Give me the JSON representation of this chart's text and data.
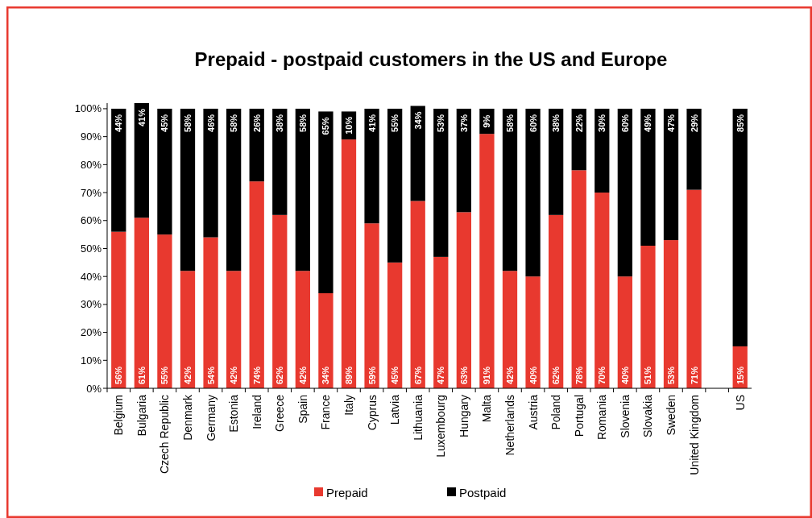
{
  "chart_data": {
    "type": "bar",
    "title": "Prepaid - postpaid customers in the US and Europe",
    "stacked": true,
    "legend": "bottom",
    "grid": false,
    "ylim": [
      0,
      102
    ],
    "yticks": [
      {
        "value": 0,
        "label": "0%"
      },
      {
        "value": 10,
        "label": "10%"
      },
      {
        "value": 20,
        "label": "20%"
      },
      {
        "value": 30,
        "label": "30%"
      },
      {
        "value": 40,
        "label": "40%"
      },
      {
        "value": 50,
        "label": "50%"
      },
      {
        "value": 60,
        "label": "60%"
      },
      {
        "value": 70,
        "label": "70%"
      },
      {
        "value": 80,
        "label": "80%"
      },
      {
        "value": 90,
        "label": "90%"
      },
      {
        "value": 100,
        "label": "100%"
      }
    ],
    "categories": [
      "Belgium",
      "Bulgaria",
      "Czech Republic",
      "Denmark",
      "Germany",
      "Estonia",
      "Ireland",
      "Greece",
      "Spain",
      "France",
      "Italy",
      "Cyprus",
      "Latvia",
      "Lithuania",
      "Luxembourg",
      "Hungary",
      "Malta",
      "Netherlands",
      "Austria",
      "Poland",
      "Portugal",
      "Romania",
      "Slovenia",
      "Slovakia",
      "Sweden",
      "United Kingdom",
      null,
      "US"
    ],
    "series": [
      {
        "name": "Prepaid",
        "color": "#e8392f",
        "values": [
          56,
          61,
          55,
          42,
          54,
          42,
          74,
          62,
          42,
          34,
          89,
          59,
          45,
          67,
          47,
          63,
          91,
          42,
          40,
          62,
          78,
          70,
          40,
          51,
          53,
          71,
          null,
          15
        ],
        "value_labels": [
          "56%",
          "61%",
          "55%",
          "42%",
          "54%",
          "42%",
          "74%",
          "62%",
          "42%",
          "34%",
          "89%",
          "59%",
          "45%",
          "67%",
          "47%",
          "63%",
          "91%",
          "42%",
          "40%",
          "62%",
          "78%",
          "70%",
          "40%",
          "51%",
          "53%",
          "71%",
          null,
          "15%"
        ]
      },
      {
        "name": "Postpaid",
        "color": "#000000",
        "values": [
          44,
          41,
          45,
          58,
          46,
          58,
          26,
          38,
          58,
          65,
          10,
          41,
          55,
          34,
          53,
          37,
          9,
          58,
          60,
          38,
          22,
          30,
          60,
          49,
          47,
          29,
          null,
          85
        ],
        "value_labels": [
          "44%",
          "41%",
          "45%",
          "58%",
          "46%",
          "58%",
          "26%",
          "38%",
          "58%",
          "65%",
          "10%",
          "41%",
          "55%",
          "34%",
          "53%",
          "37%",
          "9%",
          "58%",
          "60%",
          "38%",
          "22%",
          "30%",
          "60%",
          "49%",
          "47%",
          "29%",
          null,
          "85%"
        ]
      }
    ]
  }
}
